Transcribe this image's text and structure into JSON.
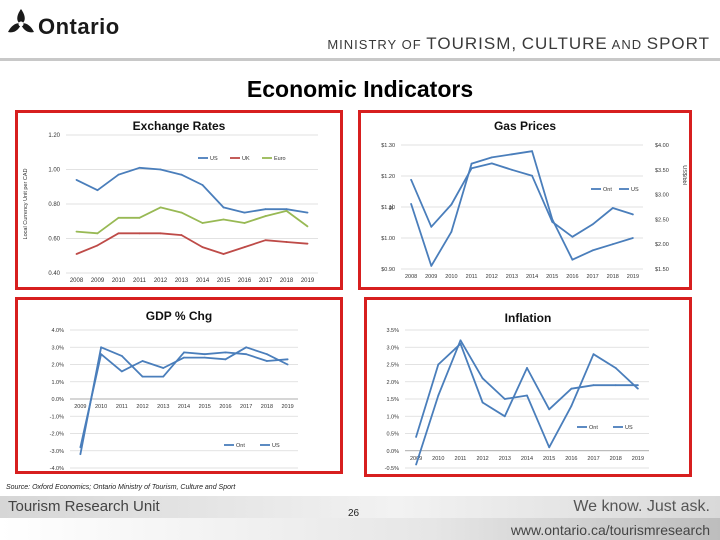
{
  "header": {
    "logo_text": "Ontario",
    "ministry_prefix": "MINISTRY OF",
    "ministry_w1": "TOURISM",
    "ministry_w2": "CULTURE",
    "ministry_and": "AND",
    "ministry_w3": "SPORT",
    "comma": ","
  },
  "page_title": "Economic Indicators",
  "colors": {
    "blue": "#4a7ebb",
    "red": "#be4b48",
    "green": "#98b954",
    "frame": "#d71f1f"
  },
  "chart_data": [
    {
      "type": "line",
      "title": "Exchange Rates",
      "ylabel": "Local Currency Unit per CAD",
      "categories": [
        "2008",
        "2009",
        "2010",
        "2011",
        "2012",
        "2013",
        "2014",
        "2015",
        "2016",
        "2017",
        "2018",
        "2019"
      ],
      "y_ticks": [
        "1.20",
        "1.00",
        "0.80",
        "0.60",
        "0.40"
      ],
      "y_tick_values": [
        1.2,
        1.0,
        0.8,
        0.6,
        0.4
      ],
      "ylim": [
        0.4,
        1.2
      ],
      "legend": [
        "US",
        "UK",
        "Euro"
      ],
      "series": [
        {
          "name": "US",
          "values": [
            0.94,
            0.88,
            0.97,
            1.01,
            1.0,
            0.97,
            0.91,
            0.78,
            0.75,
            0.77,
            0.77,
            0.75
          ]
        },
        {
          "name": "UK",
          "values": [
            0.51,
            0.56,
            0.63,
            0.63,
            0.63,
            0.62,
            0.55,
            0.51,
            0.55,
            0.59,
            0.58,
            0.57
          ]
        },
        {
          "name": "Euro",
          "values": [
            0.64,
            0.63,
            0.72,
            0.72,
            0.78,
            0.75,
            0.69,
            0.71,
            0.69,
            0.73,
            0.76,
            0.67
          ]
        }
      ]
    },
    {
      "type": "line",
      "title": "Gas Prices",
      "ylabel": "$L",
      "ylabel2": "US$/bbl",
      "categories": [
        "2008",
        "2009",
        "2010",
        "2011",
        "2012",
        "2013",
        "2014",
        "2015",
        "2016",
        "2017",
        "2018",
        "2019"
      ],
      "y_ticks": [
        "$1.30",
        "$1.20",
        "$1.10",
        "$1.00",
        "$0.90"
      ],
      "y_tick_values": [
        1.3,
        1.2,
        1.1,
        1.0,
        0.9
      ],
      "ylim": [
        0.9,
        1.3
      ],
      "y2_ticks": [
        "$4.00",
        "$3.50",
        "$3.00",
        "$2.50",
        "$2.00",
        "$1.50"
      ],
      "y2_tick_values": [
        4.0,
        3.5,
        3.0,
        2.5,
        2.0,
        1.5
      ],
      "y2lim": [
        1.5,
        4.0
      ],
      "legend": [
        "Ont",
        "US"
      ],
      "series": [
        {
          "name": "Ont",
          "axis": "left",
          "values": [
            1.11,
            0.91,
            1.02,
            1.24,
            1.26,
            1.27,
            1.28,
            1.06,
            0.93,
            0.96,
            0.98,
            1.0
          ]
        },
        {
          "name": "US",
          "axis": "right",
          "values": [
            3.3,
            2.35,
            2.8,
            3.53,
            3.63,
            3.5,
            3.38,
            2.45,
            2.15,
            2.4,
            2.73,
            2.6
          ]
        }
      ]
    },
    {
      "type": "line",
      "title": "GDP % Chg",
      "categories": [
        "2009",
        "2010",
        "2011",
        "2012",
        "2013",
        "2014",
        "2015",
        "2016",
        "2017",
        "2018",
        "2019"
      ],
      "y_ticks": [
        "4.0%",
        "3.0%",
        "2.0%",
        "1.0%",
        "0.0%",
        "-1.0%",
        "-2.0%",
        "-3.0%",
        "-4.0%"
      ],
      "y_tick_values": [
        4,
        3,
        2,
        1,
        0,
        -1,
        -2,
        -3,
        -4
      ],
      "ylim": [
        -4,
        4
      ],
      "legend": [
        "Ont",
        "US"
      ],
      "series": [
        {
          "name": "Ont",
          "values": [
            -3.2,
            3.0,
            2.5,
            1.3,
            1.3,
            2.7,
            2.6,
            2.7,
            2.6,
            2.2,
            2.3
          ]
        },
        {
          "name": "US",
          "values": [
            -2.8,
            2.6,
            1.6,
            2.2,
            1.8,
            2.4,
            2.4,
            2.3,
            3.0,
            2.6,
            2.0
          ]
        }
      ]
    },
    {
      "type": "line",
      "title": "Inflation",
      "categories": [
        "2009",
        "2010",
        "2011",
        "2012",
        "2013",
        "2014",
        "2015",
        "2016",
        "2017",
        "2018",
        "2019"
      ],
      "y_ticks": [
        "3.5%",
        "3.0%",
        "2.5%",
        "2.0%",
        "1.5%",
        "1.0%",
        "0.5%",
        "0.0%",
        "-0.5%"
      ],
      "y_tick_values": [
        3.5,
        3.0,
        2.5,
        2.0,
        1.5,
        1.0,
        0.5,
        0.0,
        -0.5
      ],
      "ylim": [
        -0.5,
        3.5
      ],
      "legend": [
        "Ont",
        "US"
      ],
      "series": [
        {
          "name": "Ont",
          "values": [
            0.4,
            2.5,
            3.1,
            1.4,
            1.0,
            2.4,
            1.2,
            1.8,
            1.9,
            1.9,
            1.9
          ]
        },
        {
          "name": "US",
          "values": [
            -0.4,
            1.6,
            3.2,
            2.1,
            1.5,
            1.6,
            0.1,
            1.3,
            2.8,
            2.4,
            1.8
          ]
        }
      ]
    }
  ],
  "source_note": "Source: Oxford Economics; Ontario Ministry of Tourism, Culture and Sport",
  "footer": {
    "unit": "Tourism Research Unit",
    "page_number": "26",
    "slogan": "We know. Just ask.",
    "url": "www.ontario.ca/tourismresearch"
  }
}
